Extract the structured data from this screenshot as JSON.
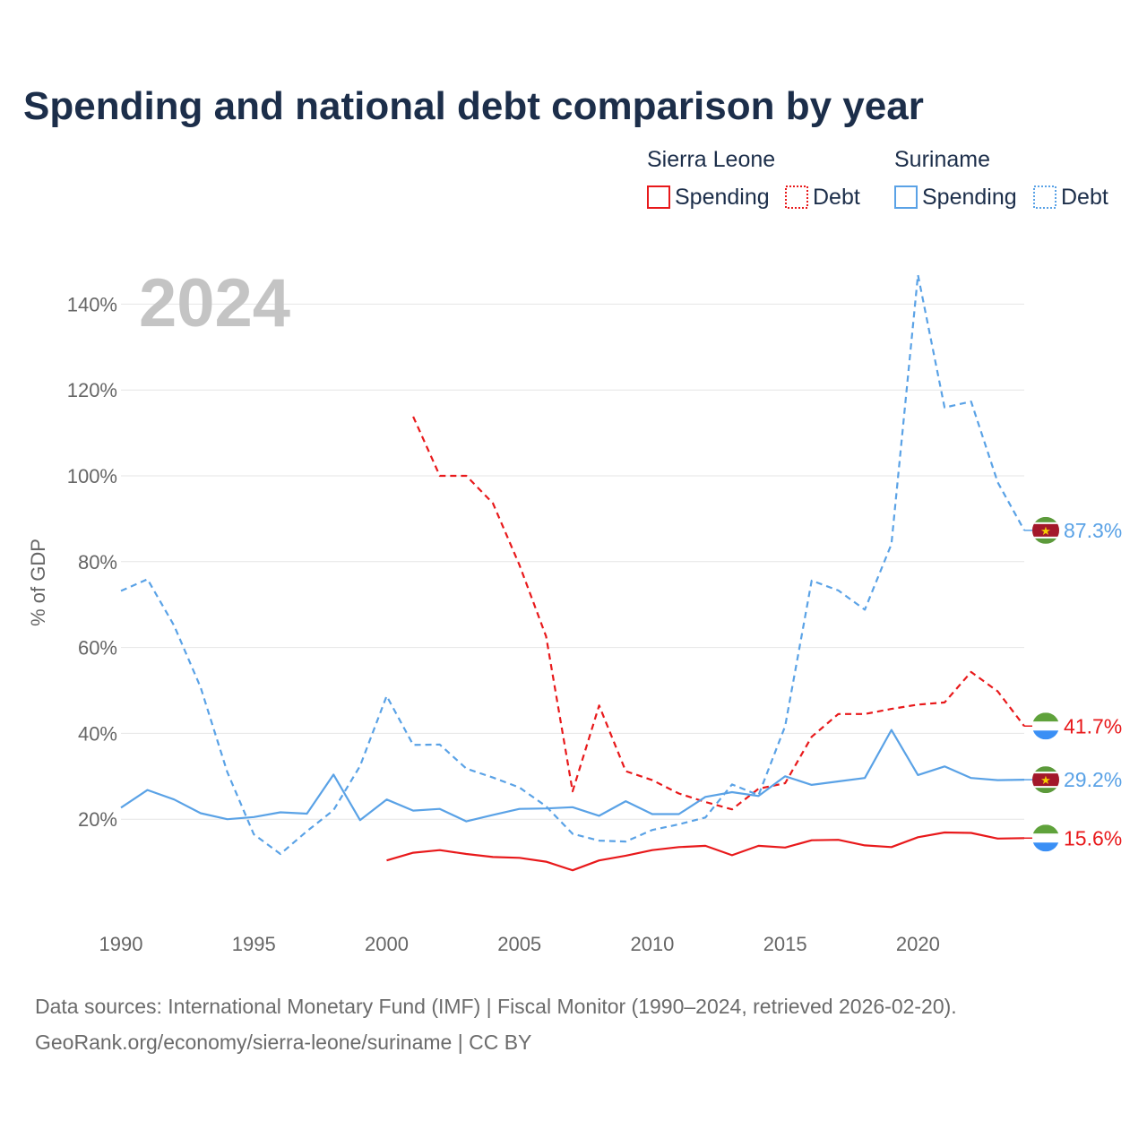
{
  "chart_data": {
    "type": "line",
    "title": "Spending and national debt comparison by year",
    "year_watermark": "2024",
    "ylabel": "% of GDP",
    "xlim": [
      1990,
      2024
    ],
    "ylim": [
      0,
      145
    ],
    "x_ticks": [
      1990,
      1995,
      2000,
      2005,
      2010,
      2015,
      2020
    ],
    "x_tick_labels": [
      "1990",
      "1995",
      "2000",
      "2005",
      "2010",
      "2015",
      "2020"
    ],
    "y_ticks": [
      20,
      40,
      60,
      80,
      100,
      120,
      140
    ],
    "y_tick_labels": [
      "20%",
      "40%",
      "60%",
      "80%",
      "100%",
      "120%",
      "140%"
    ],
    "grid": true,
    "legend_position": "top-right",
    "legend": {
      "groups": [
        {
          "country": "Sierra Leone",
          "items": [
            "Spending",
            "Debt"
          ]
        },
        {
          "country": "Suriname",
          "items": [
            "Spending",
            "Debt"
          ]
        }
      ]
    },
    "colors": {
      "sierra_leone": "#e8191b",
      "suriname": "#5aa2e6"
    },
    "x": [
      1990,
      1991,
      1992,
      1993,
      1994,
      1995,
      1996,
      1997,
      1998,
      1999,
      2000,
      2001,
      2002,
      2003,
      2004,
      2005,
      2006,
      2007,
      2008,
      2009,
      2010,
      2011,
      2012,
      2013,
      2014,
      2015,
      2016,
      2017,
      2018,
      2019,
      2020,
      2021,
      2022,
      2023,
      2024
    ],
    "series": [
      {
        "name": "Sierra Leone Spending",
        "country": "Sierra Leone",
        "metric": "Spending",
        "style": "solid",
        "values": [
          null,
          null,
          null,
          null,
          null,
          null,
          null,
          null,
          null,
          null,
          10.4,
          12.2,
          12.8,
          11.9,
          11.2,
          11.0,
          10.1,
          8.1,
          10.4,
          11.5,
          12.8,
          13.5,
          13.8,
          11.6,
          13.8,
          13.4,
          15.1,
          15.2,
          13.9,
          13.5,
          15.8,
          16.9,
          16.8,
          15.5,
          15.6
        ],
        "end_label": "15.6%"
      },
      {
        "name": "Sierra Leone Debt",
        "country": "Sierra Leone",
        "metric": "Debt",
        "style": "dashed",
        "values": [
          null,
          null,
          null,
          null,
          null,
          null,
          null,
          null,
          null,
          null,
          null,
          113.8,
          100.0,
          100.0,
          93.6,
          79.2,
          62.6,
          26.5,
          46.5,
          31.2,
          29.1,
          26.0,
          24.0,
          22.3,
          27.1,
          28.4,
          39.2,
          44.5,
          44.5,
          45.7,
          46.7,
          47.2,
          54.3,
          49.8,
          41.7
        ],
        "end_label": "41.7%"
      },
      {
        "name": "Suriname Spending",
        "country": "Suriname",
        "metric": "Spending",
        "style": "solid",
        "values": [
          22.7,
          26.8,
          24.6,
          21.4,
          20.0,
          20.5,
          21.6,
          21.3,
          30.4,
          19.8,
          24.6,
          22.0,
          22.4,
          19.5,
          21.0,
          22.4,
          22.5,
          22.8,
          20.8,
          24.2,
          21.2,
          21.2,
          25.2,
          26.3,
          25.4,
          30.0,
          28.0,
          28.8,
          29.6,
          40.8,
          30.3,
          32.3,
          29.6,
          29.1,
          29.2
        ],
        "end_label": "29.2%"
      },
      {
        "name": "Suriname Debt",
        "country": "Suriname",
        "metric": "Debt",
        "style": "dashed",
        "values": [
          73.2,
          75.9,
          65.1,
          50.7,
          31.0,
          16.5,
          11.9,
          17.2,
          22.1,
          32.4,
          48.7,
          37.3,
          37.4,
          31.8,
          29.7,
          27.4,
          23.0,
          16.6,
          15.0,
          14.8,
          17.5,
          18.8,
          20.4,
          28.1,
          25.6,
          41.7,
          75.6,
          73.3,
          68.8,
          84.1,
          146.8,
          115.9,
          117.3,
          98.5,
          87.3
        ],
        "end_label": "87.3%"
      }
    ]
  },
  "source": {
    "line1": "Data sources: International Monetary Fund (IMF) | Fiscal Monitor (1990–2024, retrieved 2026-02-20).",
    "line2": "GeoRank.org/economy/sierra-leone/suriname | CC BY"
  }
}
